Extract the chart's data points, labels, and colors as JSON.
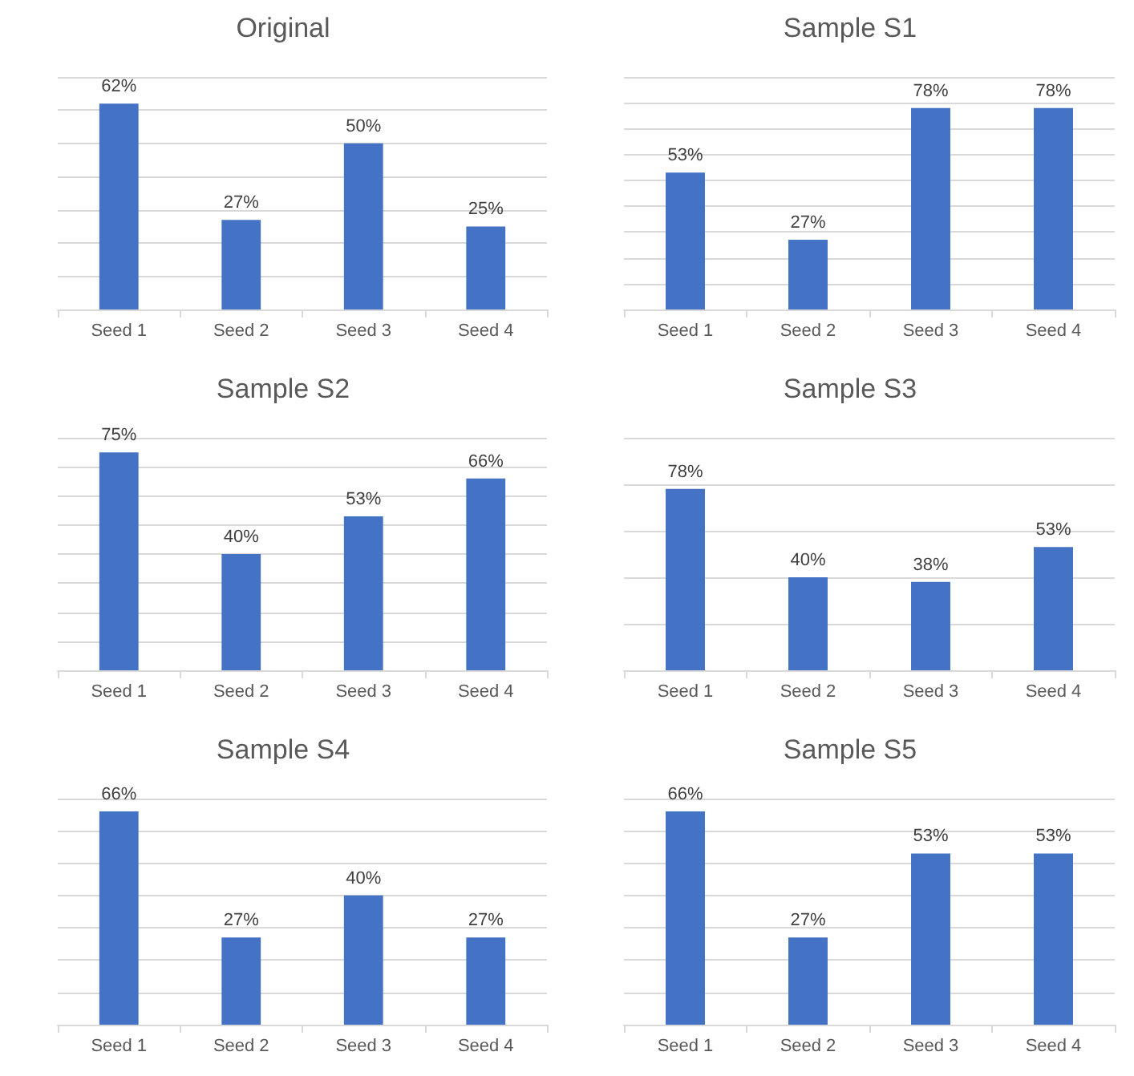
{
  "chart_data": [
    {
      "type": "bar",
      "title": "Original",
      "categories": [
        "Seed 1",
        "Seed 2",
        "Seed 3",
        "Seed 4"
      ],
      "values": [
        62,
        27,
        50,
        25
      ],
      "value_labels": [
        "62%",
        "27%",
        "50%",
        "25%"
      ],
      "color": "#4472c4",
      "ylim": [
        0,
        70
      ],
      "yticks": [
        {
          "value": 0,
          "label": null
        },
        {
          "value": 10,
          "label": null
        },
        {
          "value": 20,
          "label": null
        },
        {
          "value": 30,
          "label": null
        },
        {
          "value": 40,
          "label": null
        },
        {
          "value": 50,
          "label": null
        },
        {
          "value": 60,
          "label": null
        },
        {
          "value": 70,
          "label": null
        }
      ],
      "tick_labels": "x",
      "grid": "y"
    },
    {
      "type": "bar",
      "title": "Sample S1",
      "categories": [
        "Seed 1",
        "Seed 2",
        "Seed 3",
        "Seed 4"
      ],
      "values": [
        53,
        27,
        78,
        78
      ],
      "value_labels": [
        "53%",
        "27%",
        "78%",
        "78%"
      ],
      "color": "#4472c4",
      "ylim": [
        0,
        90
      ],
      "yticks": [
        {
          "value": 0,
          "label": null
        },
        {
          "value": 10,
          "label": null
        },
        {
          "value": 20,
          "label": null
        },
        {
          "value": 30,
          "label": null
        },
        {
          "value": 40,
          "label": null
        },
        {
          "value": 50,
          "label": null
        },
        {
          "value": 60,
          "label": null
        },
        {
          "value": 70,
          "label": null
        },
        {
          "value": 80,
          "label": null
        },
        {
          "value": 90,
          "label": null
        }
      ],
      "tick_labels": "x",
      "grid": "y"
    },
    {
      "type": "bar",
      "title": "Sample S2",
      "categories": [
        "Seed 1",
        "Seed 2",
        "Seed 3",
        "Seed 4"
      ],
      "values": [
        75,
        40,
        53,
        66
      ],
      "value_labels": [
        "75%",
        "40%",
        "53%",
        "66%"
      ],
      "color": "#4472c4",
      "ylim": [
        0,
        80
      ],
      "yticks": [
        {
          "value": 0,
          "label": null
        },
        {
          "value": 10,
          "label": null
        },
        {
          "value": 20,
          "label": null
        },
        {
          "value": 30,
          "label": null
        },
        {
          "value": 40,
          "label": null
        },
        {
          "value": 50,
          "label": null
        },
        {
          "value": 60,
          "label": null
        },
        {
          "value": 70,
          "label": null
        },
        {
          "value": 80,
          "label": null
        }
      ],
      "tick_labels": "x",
      "grid": "y"
    },
    {
      "type": "bar",
      "title": "Sample S3",
      "categories": [
        "Seed 1",
        "Seed 2",
        "Seed 3",
        "Seed 4"
      ],
      "values": [
        78,
        40,
        38,
        53
      ],
      "value_labels": [
        "78%",
        "40%",
        "38%",
        "53%"
      ],
      "color": "#4472c4",
      "ylim": [
        0,
        100
      ],
      "yticks": [
        {
          "value": 0,
          "label": null
        },
        {
          "value": 20,
          "label": null
        },
        {
          "value": 40,
          "label": null
        },
        {
          "value": 60,
          "label": null
        },
        {
          "value": 80,
          "label": null
        },
        {
          "value": 100,
          "label": null
        }
      ],
      "tick_labels": "x",
      "grid": "y"
    },
    {
      "type": "bar",
      "title": "Sample S4",
      "categories": [
        "Seed 1",
        "Seed 2",
        "Seed 3",
        "Seed 4"
      ],
      "values": [
        66,
        27,
        40,
        27
      ],
      "value_labels": [
        "66%",
        "27%",
        "40%",
        "27%"
      ],
      "color": "#4472c4",
      "ylim": [
        0,
        70
      ],
      "yticks": [
        {
          "value": 0,
          "label": null
        },
        {
          "value": 10,
          "label": null
        },
        {
          "value": 20,
          "label": null
        },
        {
          "value": 30,
          "label": null
        },
        {
          "value": 40,
          "label": null
        },
        {
          "value": 50,
          "label": null
        },
        {
          "value": 60,
          "label": null
        },
        {
          "value": 70,
          "label": null
        }
      ],
      "tick_labels": "x",
      "grid": "y"
    },
    {
      "type": "bar",
      "title": "Sample S5",
      "categories": [
        "Seed 1",
        "Seed 2",
        "Seed 3",
        "Seed 4"
      ],
      "values": [
        66,
        27,
        53,
        53
      ],
      "value_labels": [
        "66%",
        "27%",
        "53%",
        "53%"
      ],
      "color": "#4472c4",
      "ylim": [
        0,
        70
      ],
      "yticks": [
        {
          "value": 0,
          "label": null
        },
        {
          "value": 10,
          "label": null
        },
        {
          "value": 20,
          "label": null
        },
        {
          "value": 30,
          "label": null
        },
        {
          "value": 40,
          "label": null
        },
        {
          "value": 50,
          "label": null
        },
        {
          "value": 60,
          "label": null
        },
        {
          "value": 70,
          "label": null
        }
      ],
      "tick_labels": "x",
      "grid": "y"
    }
  ]
}
